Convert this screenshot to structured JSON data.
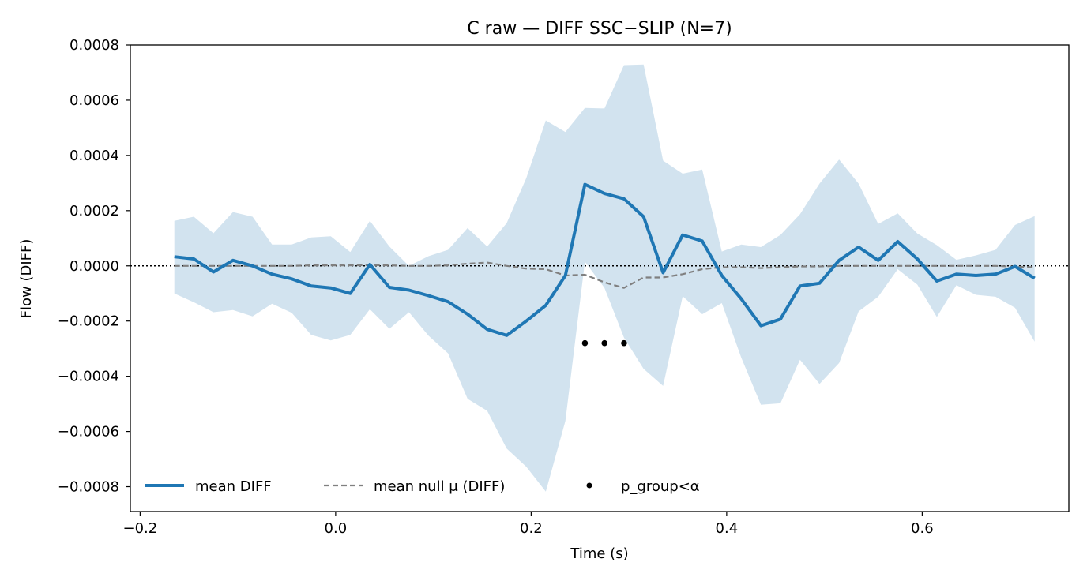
{
  "chart_data": {
    "type": "line",
    "title": "C raw — DIFF SSC−SLIP (N=7)",
    "xlabel": "Time (s)",
    "ylabel": "Flow (DIFF)",
    "xlim": [
      -0.21,
      0.75
    ],
    "ylim": [
      -0.00089,
      0.0008
    ],
    "x_ticks": [
      -0.2,
      0.0,
      0.2,
      0.4,
      0.6
    ],
    "x_tick_labels": [
      "−0.2",
      "0.0",
      "0.2",
      "0.4",
      "0.6"
    ],
    "y_ticks": [
      -0.0008,
      -0.0006,
      -0.0004,
      -0.0002,
      0.0,
      0.0002,
      0.0004,
      0.0006,
      0.0008
    ],
    "y_tick_labels": [
      "−0.0008",
      "−0.0006",
      "−0.0004",
      "−0.0002",
      "0.0000",
      "0.0002",
      "0.0004",
      "0.0006",
      "0.0008"
    ],
    "grid": false,
    "zero_line": 0.0,
    "legend_position": "bottom-left",
    "x": [
      -0.165,
      -0.145,
      -0.125,
      -0.105,
      -0.085,
      -0.065,
      -0.045,
      -0.025,
      -0.005,
      0.015,
      0.035,
      0.055,
      0.075,
      0.095,
      0.115,
      0.135,
      0.155,
      0.175,
      0.195,
      0.215,
      0.235,
      0.255,
      0.275,
      0.295,
      0.315,
      0.335,
      0.355,
      0.375,
      0.395,
      0.415,
      0.435,
      0.455,
      0.475,
      0.495,
      0.515,
      0.535,
      0.555,
      0.575,
      0.595,
      0.615,
      0.635,
      0.655,
      0.675,
      0.695,
      0.715
    ],
    "series": [
      {
        "name": "mean DIFF",
        "style": "solid",
        "color": "#1f77b4",
        "values": [
          3.3e-05,
          2.5e-05,
          -2.2e-05,
          2e-05,
          0.0,
          -3e-05,
          -4.7e-05,
          -7.3e-05,
          -8e-05,
          -0.0001,
          5e-06,
          -7.8e-05,
          -8.8e-05,
          -0.000108,
          -0.00013,
          -0.000175,
          -0.00023,
          -0.000252,
          -0.0002,
          -0.000143,
          -3.5e-05,
          0.000295,
          0.000262,
          0.000243,
          0.000178,
          -2.5e-05,
          0.000112,
          9e-05,
          -3.5e-05,
          -0.00012,
          -0.000217,
          -0.000193,
          -7.3e-05,
          -6.3e-05,
          2e-05,
          6.8e-05,
          2e-05,
          8.8e-05,
          2.5e-05,
          -5.5e-05,
          -3e-05,
          -3.5e-05,
          -3e-05,
          -2e-06,
          -4.5e-05
        ]
      },
      {
        "name": "mean null μ (DIFF)",
        "style": "dashed",
        "color": "#808080",
        "values": [
          0.0,
          0.0,
          0.0,
          0.0,
          0.0,
          0.0,
          0.0,
          2e-06,
          2e-06,
          2e-06,
          3e-06,
          2e-06,
          0.0,
          0.0,
          2e-06,
          8e-06,
          1.2e-05,
          0.0,
          -1e-05,
          -1.2e-05,
          -3.5e-05,
          -3.2e-05,
          -6e-05,
          -8e-05,
          -4.2e-05,
          -4.2e-05,
          -3e-05,
          -1.2e-05,
          -5e-06,
          -5e-06,
          -8e-06,
          -5e-06,
          -2e-06,
          -2e-06,
          0.0,
          0.0,
          0.0,
          0.0,
          0.0,
          0.0,
          0.0,
          0.0,
          0.0,
          -3e-06,
          -5e-06
        ]
      }
    ],
    "band": {
      "color": "#d2e3ef",
      "upper": [
        0.000163,
        0.000178,
        0.000118,
        0.000195,
        0.000178,
        7.7e-05,
        7.7e-05,
        0.000103,
        0.000107,
        5e-05,
        0.000163,
        7e-05,
        0.0,
        3.5e-05,
        5.8e-05,
        0.000137,
        7e-05,
        0.000155,
        0.000318,
        0.000527,
        0.000485,
        0.000572,
        0.00057,
        0.000727,
        0.000729,
        0.000381,
        0.000334,
        0.000349,
        5.2e-05,
        7.7e-05,
        6.8e-05,
        0.000112,
        0.000187,
        0.000298,
        0.000385,
        0.000298,
        0.000152,
        0.00019,
        0.000117,
        7.5e-05,
        2.2e-05,
        3.8e-05,
        5.8e-05,
        0.000148,
        0.00018
      ],
      "lower": [
        -0.0001,
        -0.000132,
        -0.000168,
        -0.00016,
        -0.000183,
        -0.000137,
        -0.00017,
        -0.00025,
        -0.00027,
        -0.00025,
        -0.000157,
        -0.000228,
        -0.000168,
        -0.000253,
        -0.000317,
        -0.000482,
        -0.000525,
        -0.000662,
        -0.000728,
        -0.000818,
        -0.000562,
        1.5e-05,
        -8e-05,
        -0.00026,
        -0.000373,
        -0.000435,
        -0.00011,
        -0.000175,
        -0.000135,
        -0.000333,
        -0.000503,
        -0.000498,
        -0.00034,
        -0.000428,
        -0.000352,
        -0.000165,
        -0.000112,
        -1.2e-05,
        -6.8e-05,
        -0.000185,
        -7e-05,
        -0.000105,
        -0.000112,
        -0.000152,
        -0.000275
      ]
    },
    "significant_points": {
      "name": "p_group<α",
      "color": "#000000",
      "x": [
        0.255,
        0.275,
        0.295
      ],
      "y": [
        -0.00028,
        -0.00028,
        -0.00028
      ]
    }
  }
}
